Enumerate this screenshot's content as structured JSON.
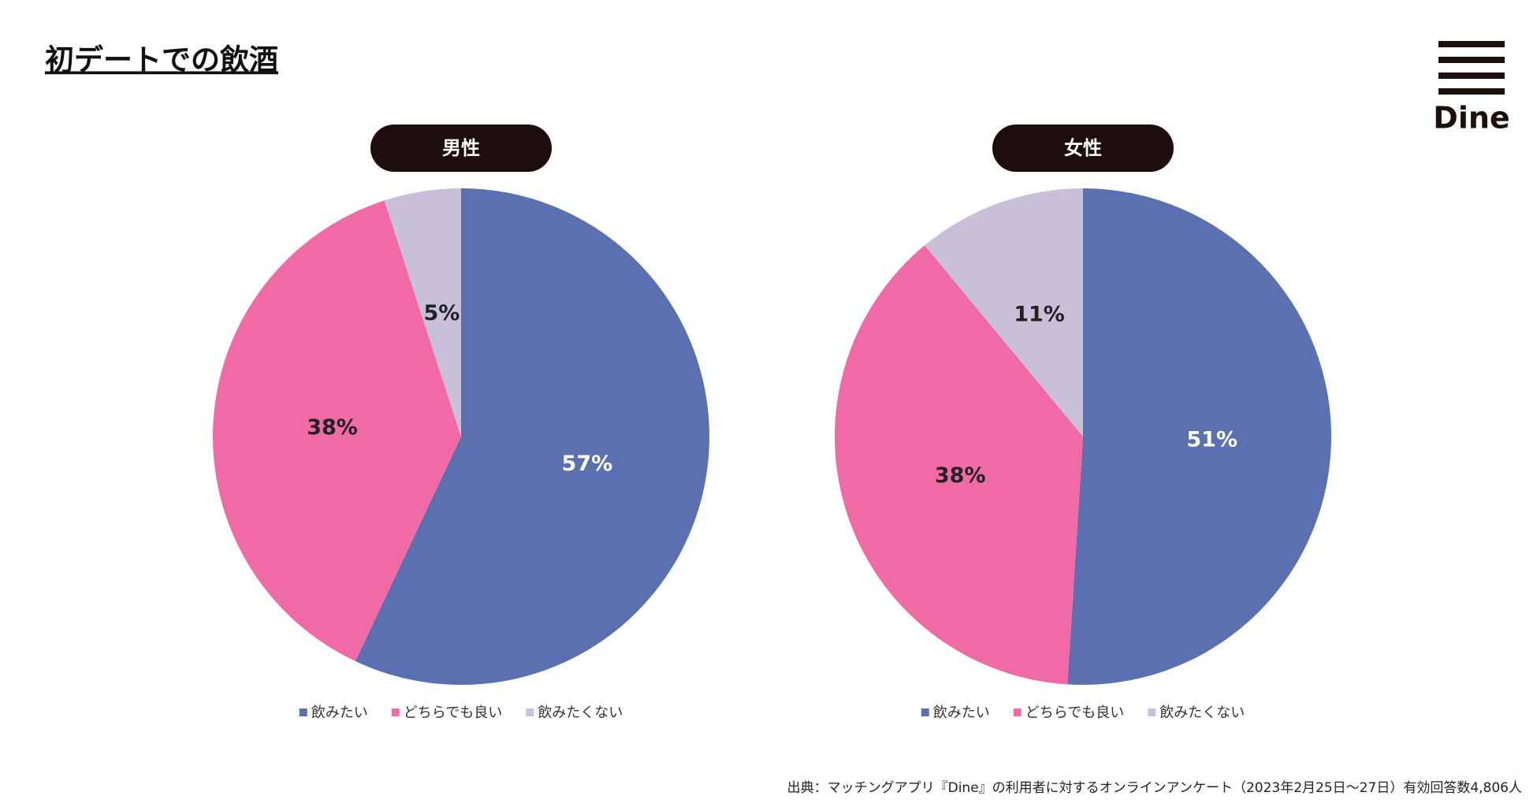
{
  "title": "初デートでの飲酒",
  "logo": "Dine",
  "source": "出典：マッチングアプリ『Dine』の利用者に対するオンラインアンケート（2023年2月25日〜27日）有効回答数4,806人",
  "chart_data": [
    {
      "type": "pie",
      "title": "男性",
      "categories": [
        "飲みたい",
        "どちらでも良い",
        "飲みたくない"
      ],
      "values": [
        57,
        38,
        5
      ],
      "value_labels": [
        "57%",
        "38%",
        "5%"
      ],
      "colors": [
        "#5b70b0",
        "#f06ba5",
        "#c8c0d8"
      ]
    },
    {
      "type": "pie",
      "title": "女性",
      "categories": [
        "飲みたい",
        "どちらでも良い",
        "飲みたくない"
      ],
      "values": [
        51,
        38,
        11
      ],
      "value_labels": [
        "51%",
        "38%",
        "11%"
      ],
      "colors": [
        "#5b70b0",
        "#f06ba5",
        "#c8c0d8"
      ]
    }
  ]
}
